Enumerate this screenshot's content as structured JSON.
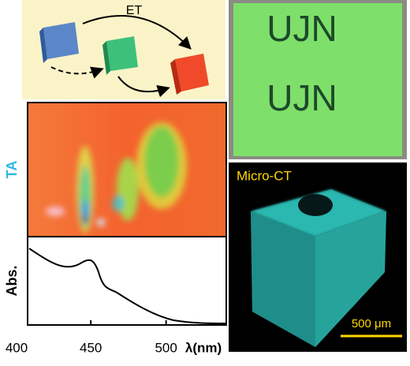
{
  "scheme": {
    "label": "ET"
  },
  "photo": {
    "texts": [
      "UJN",
      "UJN"
    ]
  },
  "spectra": {
    "ta_label": "TA",
    "abs_label": "Abs.",
    "x_label": "λ(nm)",
    "xlim": [
      408,
      540
    ],
    "xticks": [
      400,
      450,
      500
    ]
  },
  "micro_ct": {
    "title": "Micro-CT",
    "scale_bar": "500 μm"
  }
}
